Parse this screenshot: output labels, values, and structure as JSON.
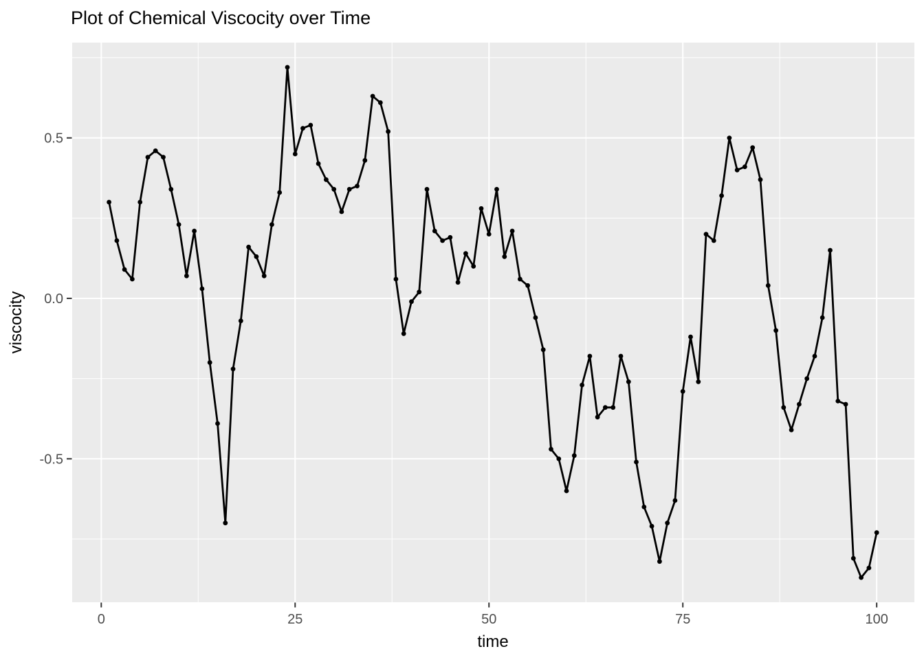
{
  "chart": {
    "title": "Plot of Chemical Viscocity over Time",
    "xlabel": "time",
    "ylabel": "viscocity"
  },
  "palette": {
    "panel_background": "#EBEBEB",
    "gridline": "#FFFFFF",
    "series_line": "#000000",
    "series_point": "#000000",
    "tick_label": "#4D4D4D",
    "tick_mark": "#333333",
    "title_text": "#000000"
  },
  "chart_data": {
    "type": "line",
    "title": "Plot of Chemical Viscocity over Time",
    "xlabel": "time",
    "ylabel": "viscocity",
    "grid": true,
    "legend": false,
    "marker": "point",
    "x_ticks": [
      0,
      25,
      50,
      75,
      100
    ],
    "x_tick_labels": [
      "0",
      "25",
      "50",
      "75",
      "100"
    ],
    "y_ticks": [
      0.5,
      0.0,
      -0.5
    ],
    "y_tick_labels": [
      "0.5",
      "0.0",
      "-0.5"
    ],
    "x_minor_ticks": [
      12.5,
      37.5,
      62.5,
      87.5
    ],
    "y_minor_ticks": [
      0.75,
      0.25,
      -0.25,
      -0.75
    ],
    "xlim": [
      -3.75,
      104.86
    ],
    "ylim": [
      -0.947,
      0.797
    ],
    "x": [
      1,
      2,
      3,
      4,
      5,
      6,
      7,
      8,
      9,
      10,
      11,
      12,
      13,
      14,
      15,
      16,
      17,
      18,
      19,
      20,
      21,
      22,
      23,
      24,
      25,
      26,
      27,
      28,
      29,
      30,
      31,
      32,
      33,
      34,
      35,
      36,
      37,
      38,
      39,
      40,
      41,
      42,
      43,
      44,
      45,
      46,
      47,
      48,
      49,
      50,
      51,
      52,
      53,
      54,
      55,
      56,
      57,
      58,
      59,
      60,
      61,
      62,
      63,
      64,
      65,
      66,
      67,
      68,
      69,
      70,
      71,
      72,
      73,
      74,
      75,
      76,
      77,
      78,
      79,
      80,
      81,
      82,
      83,
      84,
      85,
      86,
      87,
      88,
      89,
      90,
      91,
      92,
      93,
      94,
      95,
      96,
      97,
      98,
      99,
      100
    ],
    "y": [
      0.3,
      0.18,
      0.09,
      0.06,
      0.3,
      0.44,
      0.46,
      0.44,
      0.34,
      0.23,
      0.07,
      0.21,
      0.03,
      -0.2,
      -0.39,
      -0.7,
      -0.22,
      -0.07,
      0.16,
      0.13,
      0.07,
      0.23,
      0.33,
      0.72,
      0.45,
      0.53,
      0.54,
      0.42,
      0.37,
      0.34,
      0.27,
      0.34,
      0.35,
      0.43,
      0.63,
      0.61,
      0.52,
      0.06,
      -0.11,
      -0.01,
      0.02,
      0.34,
      0.21,
      0.18,
      0.19,
      0.05,
      0.14,
      0.1,
      0.28,
      0.2,
      0.34,
      0.13,
      0.21,
      0.06,
      0.04,
      -0.06,
      -0.16,
      -0.47,
      -0.5,
      -0.6,
      -0.49,
      -0.27,
      -0.18,
      -0.37,
      -0.34,
      -0.34,
      -0.18,
      -0.26,
      -0.51,
      -0.65,
      -0.71,
      -0.82,
      -0.7,
      -0.63,
      -0.29,
      -0.12,
      -0.26,
      0.2,
      0.18,
      0.32,
      0.5,
      0.4,
      0.41,
      0.47,
      0.37,
      0.04,
      -0.1,
      -0.34,
      -0.41,
      -0.33,
      -0.25,
      -0.18,
      -0.06,
      0.15,
      -0.32,
      -0.33,
      -0.81,
      -0.87,
      -0.84,
      -0.73
    ]
  }
}
